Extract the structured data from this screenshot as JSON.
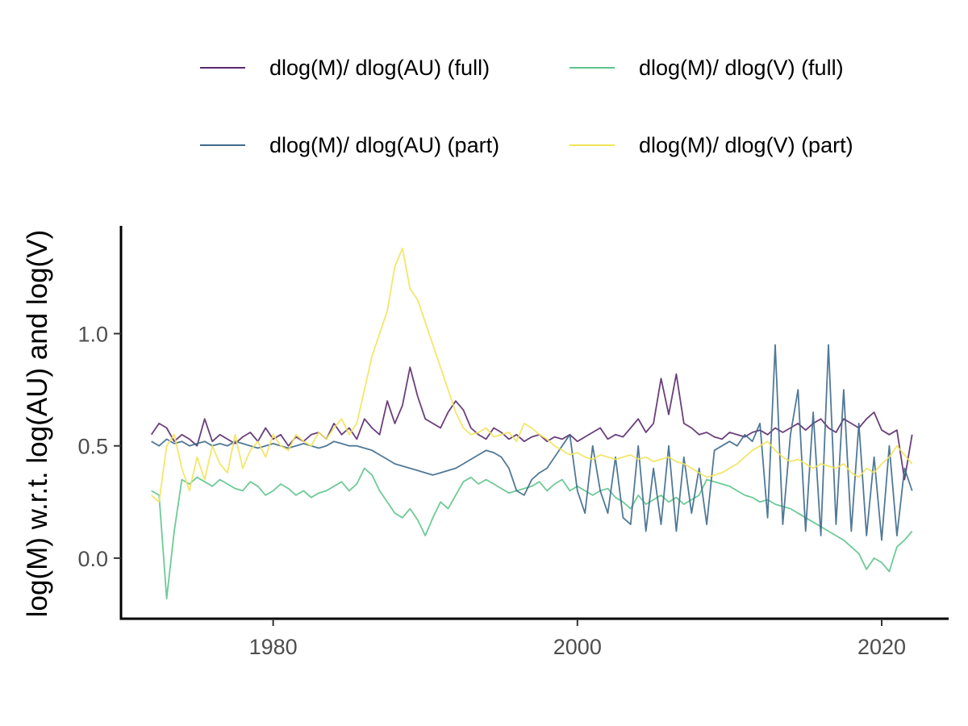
{
  "chart_data": {
    "type": "line",
    "title": "",
    "xlabel": "",
    "ylabel": "log(M) w.r.t. log(AU) and log(V)",
    "xlim": [
      1970.0,
      2024.4
    ],
    "ylim": [
      -0.27,
      1.48
    ],
    "x_ticks": [
      1980,
      2000,
      2020
    ],
    "x_tick_labels": [
      "1980",
      "2000",
      "2020"
    ],
    "y_ticks": [
      0.0,
      0.5,
      1.0
    ],
    "y_tick_labels": [
      "0.0",
      "0.5",
      "1.0"
    ],
    "grid": false,
    "legend_position": "top",
    "x_start": 1972.0,
    "x_step": 0.5,
    "series": [
      {
        "name": "dlog(M)/ dlog(AU) (full)",
        "color": "#5B2A6E",
        "values": [
          0.55,
          0.6,
          0.58,
          0.52,
          0.55,
          0.53,
          0.5,
          0.62,
          0.52,
          0.55,
          0.53,
          0.51,
          0.54,
          0.56,
          0.52,
          0.58,
          0.53,
          0.55,
          0.5,
          0.54,
          0.52,
          0.55,
          0.56,
          0.53,
          0.6,
          0.55,
          0.58,
          0.53,
          0.62,
          0.58,
          0.55,
          0.7,
          0.6,
          0.68,
          0.85,
          0.72,
          0.62,
          0.6,
          0.58,
          0.65,
          0.7,
          0.66,
          0.58,
          0.55,
          0.53,
          0.58,
          0.56,
          0.53,
          0.55,
          0.52,
          0.54,
          0.55,
          0.52,
          0.54,
          0.53,
          0.55,
          0.52,
          0.54,
          0.56,
          0.58,
          0.53,
          0.55,
          0.54,
          0.58,
          0.62,
          0.56,
          0.6,
          0.8,
          0.64,
          0.82,
          0.6,
          0.58,
          0.55,
          0.56,
          0.54,
          0.53,
          0.56,
          0.55,
          0.54,
          0.56,
          0.57,
          0.55,
          0.58,
          0.56,
          0.58,
          0.6,
          0.57,
          0.6,
          0.62,
          0.58,
          0.56,
          0.62,
          0.6,
          0.58,
          0.62,
          0.65,
          0.57,
          0.55,
          0.57,
          0.35,
          0.55
        ]
      },
      {
        "name": "dlog(M)/ dlog(V) (full)",
        "color": "#5EC48C",
        "values": [
          0.3,
          0.28,
          -0.18,
          0.12,
          0.35,
          0.33,
          0.36,
          0.34,
          0.32,
          0.35,
          0.33,
          0.31,
          0.3,
          0.34,
          0.32,
          0.28,
          0.3,
          0.33,
          0.31,
          0.28,
          0.3,
          0.27,
          0.29,
          0.3,
          0.32,
          0.34,
          0.3,
          0.33,
          0.4,
          0.37,
          0.3,
          0.25,
          0.2,
          0.18,
          0.22,
          0.17,
          0.1,
          0.18,
          0.25,
          0.22,
          0.28,
          0.34,
          0.36,
          0.33,
          0.35,
          0.33,
          0.31,
          0.29,
          0.3,
          0.31,
          0.32,
          0.34,
          0.3,
          0.33,
          0.35,
          0.3,
          0.32,
          0.3,
          0.28,
          0.3,
          0.31,
          0.27,
          0.25,
          0.22,
          0.28,
          0.24,
          0.26,
          0.28,
          0.25,
          0.27,
          0.24,
          0.26,
          0.28,
          0.35,
          0.34,
          0.33,
          0.32,
          0.3,
          0.28,
          0.27,
          0.25,
          0.26,
          0.24,
          0.23,
          0.22,
          0.2,
          0.18,
          0.16,
          0.14,
          0.12,
          0.1,
          0.08,
          0.05,
          0.02,
          -0.05,
          0.0,
          -0.02,
          -0.06,
          0.05,
          0.08,
          0.12
        ]
      },
      {
        "name": "dlog(M)/ dlog(AU) (part)",
        "color": "#3E6A8C",
        "values": [
          0.52,
          0.5,
          0.53,
          0.51,
          0.52,
          0.5,
          0.51,
          0.52,
          0.5,
          0.51,
          0.5,
          0.52,
          0.51,
          0.5,
          0.49,
          0.5,
          0.51,
          0.5,
          0.49,
          0.5,
          0.51,
          0.5,
          0.49,
          0.5,
          0.52,
          0.51,
          0.5,
          0.5,
          0.49,
          0.48,
          0.46,
          0.44,
          0.42,
          0.41,
          0.4,
          0.39,
          0.38,
          0.37,
          0.38,
          0.39,
          0.4,
          0.42,
          0.44,
          0.46,
          0.48,
          0.47,
          0.45,
          0.4,
          0.3,
          0.28,
          0.35,
          0.38,
          0.4,
          0.45,
          0.5,
          0.55,
          0.3,
          0.2,
          0.5,
          0.3,
          0.2,
          0.45,
          0.18,
          0.15,
          0.5,
          0.12,
          0.4,
          0.15,
          0.5,
          0.12,
          0.45,
          0.2,
          0.4,
          0.15,
          0.48,
          0.5,
          0.52,
          0.5,
          0.55,
          0.52,
          0.6,
          0.18,
          0.95,
          0.15,
          0.55,
          0.75,
          0.12,
          0.65,
          0.1,
          0.95,
          0.15,
          0.75,
          0.12,
          0.6,
          0.1,
          0.45,
          0.08,
          0.5,
          0.1,
          0.4,
          0.3
        ]
      },
      {
        "name": "dlog(M)/ dlog(V) (part)",
        "color": "#F2E35A",
        "values": [
          0.28,
          0.25,
          0.5,
          0.55,
          0.4,
          0.3,
          0.45,
          0.35,
          0.5,
          0.42,
          0.38,
          0.55,
          0.4,
          0.48,
          0.52,
          0.45,
          0.55,
          0.5,
          0.48,
          0.55,
          0.52,
          0.5,
          0.56,
          0.53,
          0.58,
          0.62,
          0.55,
          0.6,
          0.75,
          0.9,
          1.0,
          1.1,
          1.3,
          1.38,
          1.2,
          1.15,
          1.05,
          0.95,
          0.85,
          0.75,
          0.65,
          0.58,
          0.55,
          0.56,
          0.58,
          0.54,
          0.55,
          0.56,
          0.52,
          0.6,
          0.58,
          0.55,
          0.53,
          0.5,
          0.48,
          0.46,
          0.47,
          0.45,
          0.44,
          0.46,
          0.45,
          0.44,
          0.45,
          0.46,
          0.44,
          0.45,
          0.43,
          0.44,
          0.45,
          0.43,
          0.42,
          0.4,
          0.38,
          0.36,
          0.37,
          0.38,
          0.4,
          0.42,
          0.45,
          0.48,
          0.5,
          0.52,
          0.48,
          0.45,
          0.43,
          0.44,
          0.42,
          0.4,
          0.42,
          0.41,
          0.4,
          0.42,
          0.38,
          0.36,
          0.4,
          0.38,
          0.42,
          0.45,
          0.5,
          0.46,
          0.42
        ]
      }
    ]
  }
}
